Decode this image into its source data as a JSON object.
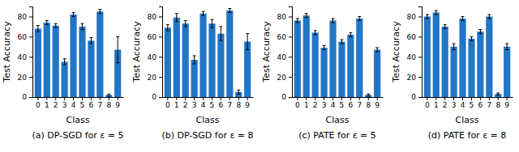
{
  "chart_data": [
    {
      "type": "bar",
      "title": "(a) DP-SGD for ε = 5",
      "xlabel": "Class",
      "ylabel": "Test Accuracy",
      "categories": [
        "0",
        "1",
        "2",
        "3",
        "4",
        "5",
        "6",
        "7",
        "8",
        "9"
      ],
      "values": [
        68,
        74,
        71,
        35,
        82,
        70,
        56,
        85,
        2,
        47
      ],
      "errors": [
        3,
        2,
        2,
        3,
        2,
        3,
        3,
        2,
        1,
        13
      ],
      "color": "#2176c7",
      "ylim": [
        0,
        90
      ],
      "yticks": [
        0,
        20,
        40,
        60,
        80
      ]
    },
    {
      "type": "bar",
      "title": "(b) DP-SGD for ε = 8",
      "xlabel": "Class",
      "ylabel": "Test Accuracy",
      "categories": [
        "0",
        "1",
        "2",
        "3",
        "4",
        "5",
        "6",
        "7",
        "8",
        "9"
      ],
      "values": [
        69,
        79,
        73,
        37,
        83,
        73,
        63,
        86,
        5,
        55
      ],
      "errors": [
        3,
        4,
        3,
        4,
        2,
        4,
        7,
        2,
        2,
        8
      ],
      "color": "#2176c7",
      "ylim": [
        0,
        90
      ],
      "yticks": [
        0,
        20,
        40,
        60,
        80
      ]
    },
    {
      "type": "bar",
      "title": "(c) PATE for ε = 5",
      "xlabel": "Class",
      "ylabel": "Test Accuracy",
      "categories": [
        "0",
        "1",
        "2",
        "3",
        "4",
        "5",
        "6",
        "7",
        "8",
        "9"
      ],
      "values": [
        76,
        81,
        64,
        49,
        76,
        55,
        62,
        78,
        2,
        47
      ],
      "errors": [
        2,
        2,
        2,
        2,
        2,
        2,
        2,
        2,
        1,
        2
      ],
      "color": "#2176c7",
      "ylim": [
        0,
        90
      ],
      "yticks": [
        0,
        20,
        40,
        60,
        80
      ]
    },
    {
      "type": "bar",
      "title": "(d) PATE for ε = 8",
      "xlabel": "Class",
      "ylabel": "Test Accuracy",
      "categories": [
        "0",
        "1",
        "2",
        "3",
        "4",
        "5",
        "6",
        "7",
        "8",
        "9"
      ],
      "values": [
        80,
        84,
        70,
        50,
        78,
        58,
        65,
        80,
        3,
        50
      ],
      "errors": [
        2,
        2,
        2,
        3,
        2,
        2,
        2,
        2,
        1,
        3
      ],
      "color": "#2176c7",
      "ylim": [
        0,
        90
      ],
      "yticks": [
        0,
        20,
        40,
        60,
        80
      ]
    }
  ]
}
